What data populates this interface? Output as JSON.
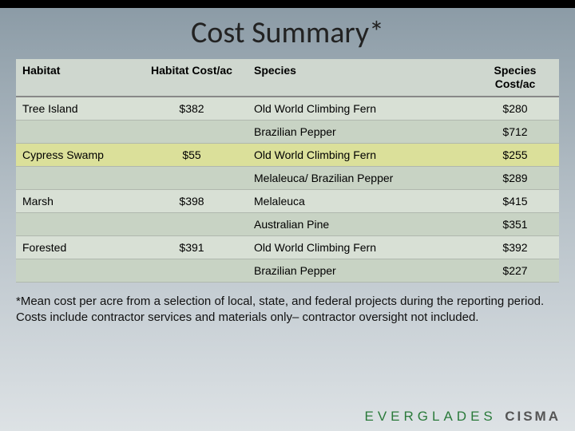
{
  "title": "Cost Summary*",
  "headers": {
    "habitat": "Habitat",
    "habitat_cost": "Habitat Cost/ac",
    "species": "Species",
    "species_cost": "Species Cost/ac"
  },
  "rows": [
    {
      "habitat": "Tree Island",
      "habitat_cost": "$382",
      "species": "Old World Climbing Fern",
      "species_cost": "$280",
      "class": "row-light"
    },
    {
      "habitat": "",
      "habitat_cost": "",
      "species": "Brazilian Pepper",
      "species_cost": "$712",
      "class": "row-mid"
    },
    {
      "habitat": "Cypress Swamp",
      "habitat_cost": "$55",
      "species": "Old World Climbing Fern",
      "species_cost": "$255",
      "class": "row-hl"
    },
    {
      "habitat": "",
      "habitat_cost": "",
      "species": "Melaleuca/ Brazilian Pepper",
      "species_cost": "$289",
      "class": "row-mid"
    },
    {
      "habitat": "Marsh",
      "habitat_cost": "$398",
      "species": "Melaleuca",
      "species_cost": "$415",
      "class": "row-light"
    },
    {
      "habitat": "",
      "habitat_cost": "",
      "species": "Australian Pine",
      "species_cost": "$351",
      "class": "row-mid"
    },
    {
      "habitat": "Forested",
      "habitat_cost": "$391",
      "species": "Old World Climbing Fern",
      "species_cost": "$392",
      "class": "row-light"
    },
    {
      "habitat": "",
      "habitat_cost": "",
      "species": "Brazilian Pepper",
      "species_cost": "$227",
      "class": "row-mid"
    }
  ],
  "footnote": "*Mean cost per acre from a selection of local, state, and federal projects during the reporting period. Costs include contractor services and materials only– contractor oversight not included.",
  "brand": {
    "left": "EVERGLADES",
    "right": "CISMA"
  }
}
